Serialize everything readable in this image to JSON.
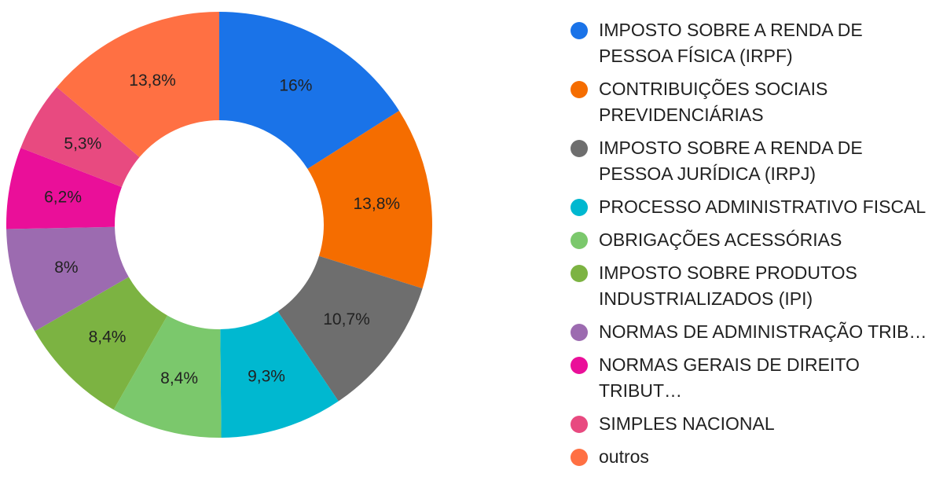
{
  "chart_data": {
    "type": "pie",
    "donut": true,
    "legend_position": "right",
    "slices": [
      {
        "label": "IMPOSTO SOBRE A RENDA DE\nPESSOA FÍSICA (IRPF)",
        "value": 16.0,
        "value_label": "16%",
        "color": "#1a73e8"
      },
      {
        "label": "CONTRIBUIÇÕES SOCIAIS\nPREVIDENCIÁRIAS",
        "value": 13.8,
        "value_label": "13,8%",
        "color": "#f56d00"
      },
      {
        "label": "IMPOSTO SOBRE A RENDA DE\nPESSOA JURÍDICA (IRPJ)",
        "value": 10.7,
        "value_label": "10,7%",
        "color": "#6e6e6e"
      },
      {
        "label": "PROCESSO ADMINISTRATIVO FISCAL",
        "value": 9.3,
        "value_label": "9,3%",
        "color": "#00b8d0"
      },
      {
        "label": "OBRIGAÇÕES ACESSÓRIAS",
        "value": 8.4,
        "value_label": "8,4%",
        "color": "#7bc86c"
      },
      {
        "label": "IMPOSTO SOBRE PRODUTOS\nINDUSTRIALIZADOS (IPI)",
        "value": 8.4,
        "value_label": "8,4%",
        "color": "#7cb342"
      },
      {
        "label": "NORMAS DE ADMINISTRAÇÃO TRIB…",
        "value": 8.0,
        "value_label": "8%",
        "color": "#9c6bb0"
      },
      {
        "label": "NORMAS GERAIS DE DIREITO TRIBUT…",
        "value": 6.2,
        "value_label": "6,2%",
        "color": "#ea0f99"
      },
      {
        "label": "SIMPLES NACIONAL",
        "value": 5.3,
        "value_label": "5,3%",
        "color": "#e84a80"
      },
      {
        "label": "outros",
        "value": 13.8,
        "value_label": "13,8%",
        "color": "#ff7043"
      }
    ]
  }
}
